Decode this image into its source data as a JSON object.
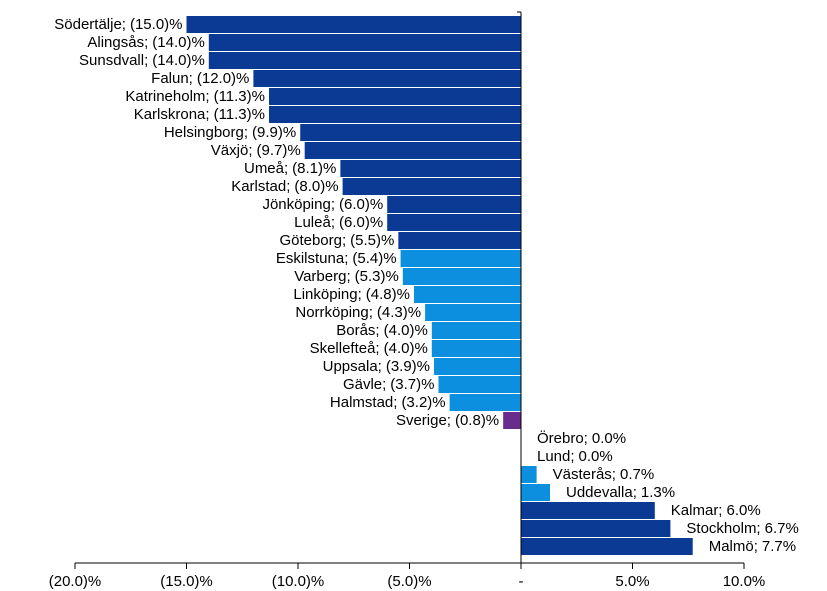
{
  "chart_data": {
    "type": "bar",
    "orientation": "horizontal",
    "categories": [
      "Södertälje;",
      "Alingsås;",
      "Sunsdvall;",
      "Falun;",
      "Katrineholm;",
      "Karlskrona;",
      "Helsingborg;",
      "Växjö;",
      "Umeå;",
      "Karlstad;",
      "Jönköping;",
      "Luleå;",
      "Göteborg;",
      "Eskilstuna;",
      "Varberg;",
      "Linköping;",
      "Norrköping;",
      "Borås;",
      "Skellefteå;",
      "Uppsala;",
      "Gävle;",
      "Halmstad;",
      "Sverige;",
      "Örebro;",
      "Lund;",
      "Västerås;",
      "Uddevalla;",
      "Kalmar;",
      "Stockholm;",
      "Malmö;"
    ],
    "values": [
      -15.0,
      -14.0,
      -14.0,
      -12.0,
      -11.3,
      -11.3,
      -9.9,
      -9.7,
      -8.1,
      -8.0,
      -6.0,
      -6.0,
      -5.5,
      -5.4,
      -5.3,
      -4.8,
      -4.3,
      -4.0,
      -4.0,
      -3.9,
      -3.7,
      -3.2,
      -0.8,
      0.0,
      0.0,
      0.7,
      1.3,
      6.0,
      6.7,
      7.7
    ],
    "value_labels": [
      "(15.0)%",
      "(14.0)%",
      "(14.0)%",
      "(12.0)%",
      "(11.3)%",
      "(11.3)%",
      "(9.9)%",
      "(9.7)%",
      "(8.1)%",
      "(8.0)%",
      "(6.0)%",
      "(6.0)%",
      "(5.5)%",
      "(5.4)%",
      "(5.3)%",
      "(4.8)%",
      "(4.3)%",
      "(4.0)%",
      "(4.0)%",
      "(3.9)%",
      "(3.7)%",
      "(3.2)%",
      "(0.8)%",
      "0.0%",
      "0.0%",
      "0.7%",
      "1.3%",
      "6.0%",
      "6.7%",
      "7.7%"
    ],
    "colors": [
      "#0a3a94",
      "#0a3a94",
      "#0a3a94",
      "#0a3a94",
      "#0a3a94",
      "#0a3a94",
      "#0a3a94",
      "#0a3a94",
      "#0a3a94",
      "#0a3a94",
      "#0a3a94",
      "#0a3a94",
      "#0a3a94",
      "#0b8fde",
      "#0b8fde",
      "#0b8fde",
      "#0b8fde",
      "#0b8fde",
      "#0b8fde",
      "#0b8fde",
      "#0b8fde",
      "#0b8fde",
      "#6a2c8c",
      "#0b8fde",
      "#0b8fde",
      "#0b8fde",
      "#0b8fde",
      "#0a3a94",
      "#0a3a94",
      "#0a3a94"
    ],
    "xlim": [
      -20,
      10
    ],
    "xticks": [
      {
        "value": -20,
        "label": "(20.0)%"
      },
      {
        "value": -15,
        "label": "(15.0)%"
      },
      {
        "value": -10,
        "label": "(10.0)%"
      },
      {
        "value": -5,
        "label": "(5.0)%"
      },
      {
        "value": 0,
        "label": "-"
      },
      {
        "value": 5,
        "label": "5.0%"
      },
      {
        "value": 10,
        "label": "10.0%"
      }
    ],
    "grid": false
  }
}
